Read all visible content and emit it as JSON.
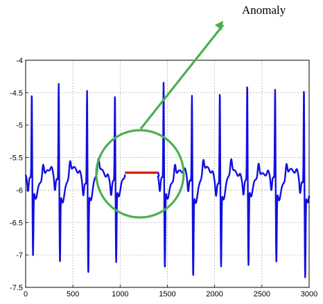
{
  "chart_data": {
    "type": "line",
    "title": "",
    "xlabel": "",
    "ylabel": "",
    "xlim": [
      0,
      3000
    ],
    "ylim": [
      -7.5,
      -4
    ],
    "x_ticks": [
      "0",
      "500",
      "1000",
      "1500",
      "2000",
      "2500",
      "3000"
    ],
    "y_ticks": [
      "-4",
      "-4.5",
      "-5",
      "-5.5",
      "-6",
      "-6.5",
      "-7",
      "-7.5"
    ],
    "grid": true,
    "series": [
      {
        "color": "#1010e0",
        "role": "signal",
        "beat_positions": [
          65,
          350,
          650,
          945,
          1460,
          1760,
          2055,
          2345,
          2640,
          2945
        ],
        "r_peaks": [
          -4.52,
          -4.32,
          -4.38,
          -4.5,
          -4.35,
          -4.48,
          -4.4,
          -4.35,
          -4.45,
          -4.35
        ],
        "s_troughs": [
          -6.95,
          -7.0,
          -7.15,
          -7.05,
          -7.15,
          -7.2,
          -7.05,
          -7.1,
          -7.05,
          -7.2
        ],
        "baseline": -5.85
      },
      {
        "color": "#e02010",
        "role": "anomaly",
        "x_range": [
          1050,
          1400
        ],
        "level": -5.72
      }
    ],
    "annotation": {
      "text": "Anomaly",
      "circle_center": [
        1210,
        -5.75
      ],
      "circle_color": "#4caf50",
      "arrow_color": "#4caf50"
    }
  }
}
